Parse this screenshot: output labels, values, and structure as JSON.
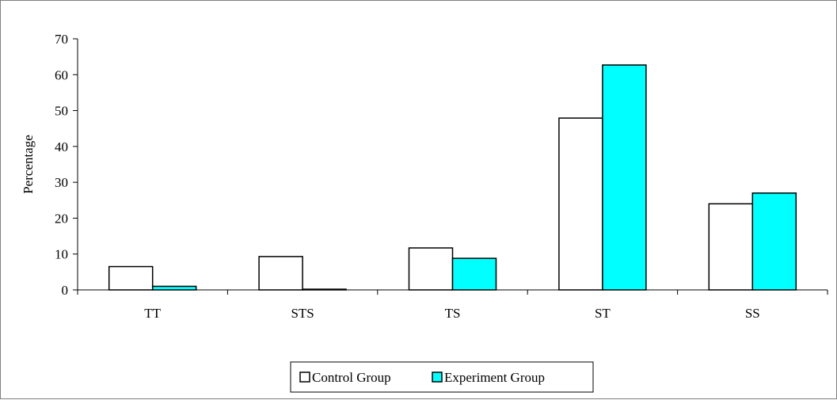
{
  "chart_data": {
    "type": "bar",
    "title": "",
    "xlabel": "",
    "ylabel": "Percentage",
    "ylim": [
      0,
      70
    ],
    "yticks": [
      0,
      10,
      20,
      30,
      40,
      50,
      60,
      70
    ],
    "categories": [
      "TT",
      "STS",
      "TS",
      "ST",
      "SS"
    ],
    "series": [
      {
        "name": "Control Group",
        "values": [
          6.5,
          9.3,
          11.7,
          47.9,
          24.0
        ],
        "color": "#ffffff"
      },
      {
        "name": "Experiment Group",
        "values": [
          1.0,
          0.2,
          8.8,
          62.7,
          27.0
        ],
        "color": "#00ffff"
      }
    ],
    "grid": false,
    "legend_position": "bottom-center"
  }
}
